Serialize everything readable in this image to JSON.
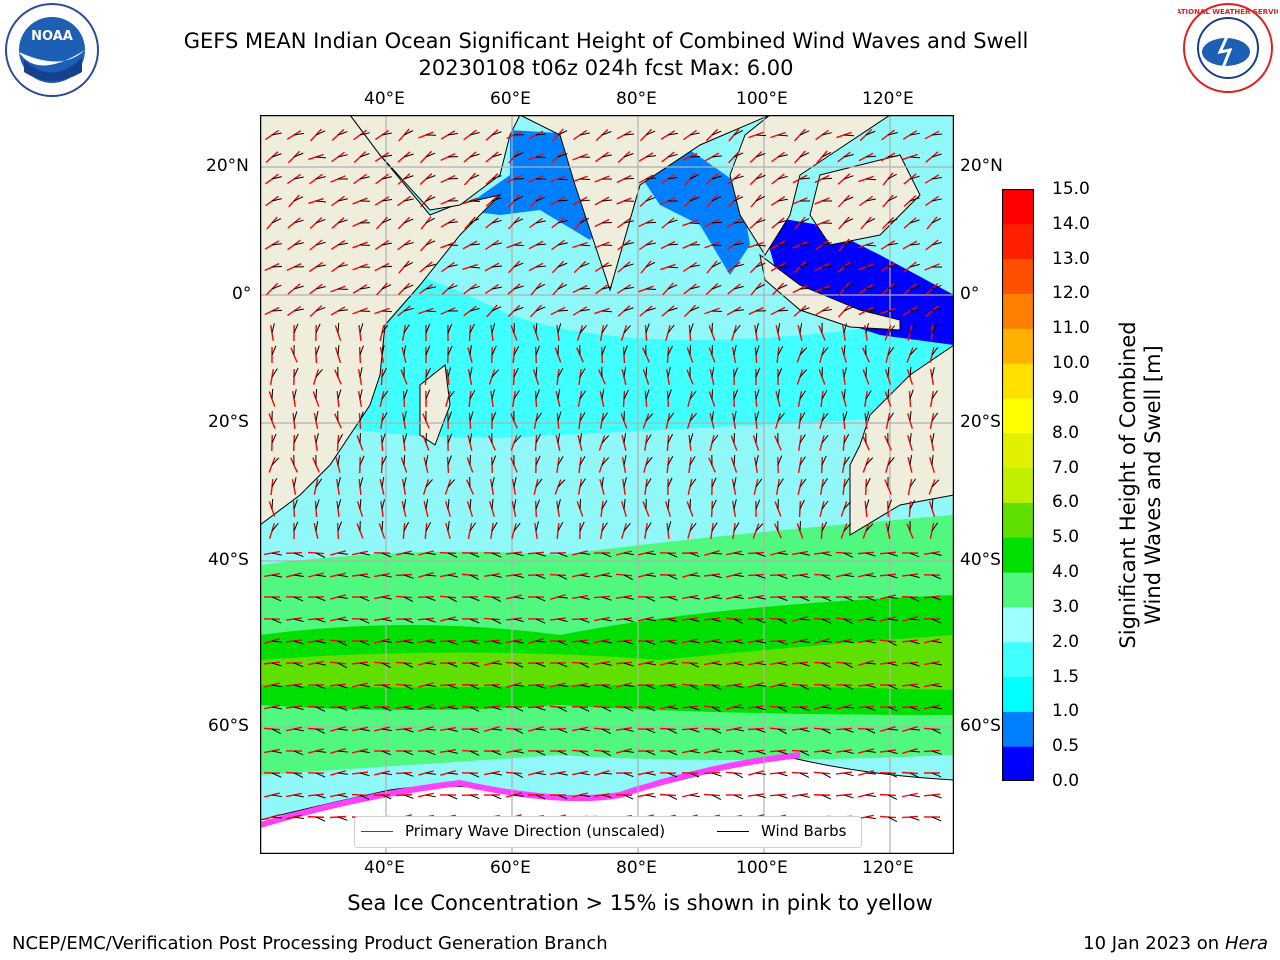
{
  "header": {
    "title_line1": "GEFS MEAN Indian Ocean Significant Height of Combined Wind Waves and Swell",
    "title_line2": "20230108 t06z 024h fcst   Max: 6.00"
  },
  "logos": {
    "left": {
      "icon": "noaa-logo",
      "text": "NOAA"
    },
    "right": {
      "icon": "nws-logo",
      "text": "NATIONAL WEATHER SERVICE"
    }
  },
  "map": {
    "lon_ticks_top": [
      "40°E",
      "60°E",
      "80°E",
      "100°E",
      "120°E"
    ],
    "lon_ticks_bottom": [
      "40°E",
      "60°E",
      "80°E",
      "100°E",
      "120°E"
    ],
    "lat_ticks_left": [
      "20°N",
      "0°",
      "20°S",
      "40°S",
      "60°S"
    ],
    "lat_ticks_right": [
      "20°N",
      "0°",
      "20°S",
      "40°S",
      "60°S"
    ],
    "colors": {
      "land": "#efeddc",
      "ice": "#ffffff",
      "wave_arrow": "#ff0000",
      "wind_barb": "#000000"
    }
  },
  "legend": {
    "items": [
      {
        "label": "Primary Wave Direction (unscaled)",
        "color": "#ff0000"
      },
      {
        "label": "Wind Barbs",
        "color": "#000000"
      }
    ]
  },
  "colorbar": {
    "label_line1": "Significant Height of Combined",
    "label_line2": "Wind Waves and Swell [m]",
    "ticks": [
      "0.0",
      "0.5",
      "1.0",
      "1.5",
      "2.0",
      "3.0",
      "4.0",
      "5.0",
      "6.0",
      "7.0",
      "8.0",
      "9.0",
      "10.0",
      "11.0",
      "12.0",
      "13.0",
      "14.0",
      "15.0"
    ],
    "colors": [
      "#0000ff",
      "#0080ff",
      "#00ffff",
      "#40ffff",
      "#a0ffff",
      "#50f880",
      "#00e000",
      "#60e000",
      "#c0f000",
      "#e0f000",
      "#ffff00",
      "#ffe000",
      "#ffb000",
      "#ff8000",
      "#ff5000",
      "#ff2000",
      "#ff0000"
    ]
  },
  "subtitle": "Sea Ice Concentration > 15% is shown in pink to yellow",
  "footer": {
    "left": "NCEP/EMC/Verification Post Processing Product Generation Branch",
    "right_date": "10 Jan 2023 on ",
    "right_host": "Hera"
  }
}
